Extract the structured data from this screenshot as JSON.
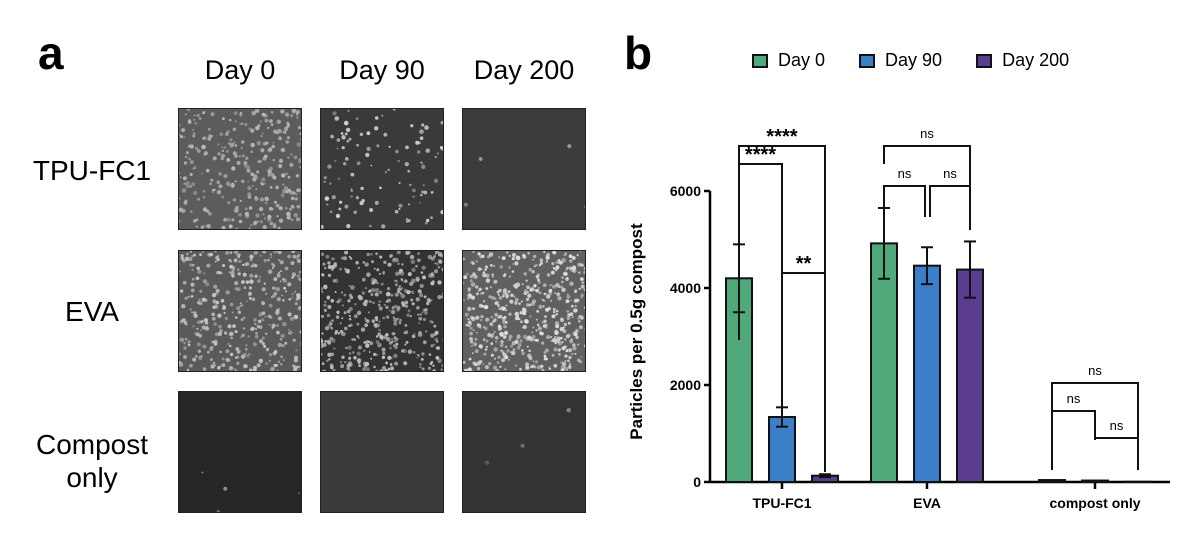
{
  "panel_a": {
    "letter": "a",
    "columns": [
      "Day 0",
      "Day 90",
      "Day 200"
    ],
    "rows": [
      {
        "label": "TPU-FC1",
        "tiles": [
          {
            "bg": "#5c5c5c",
            "density": 320,
            "dot": "#b8b8b8"
          },
          {
            "bg": "#3a3a3a",
            "density": 110,
            "dot": "#d0d0d0"
          },
          {
            "bg": "#3c3c3c",
            "density": 4,
            "dot": "#9a9a9a"
          }
        ]
      },
      {
        "label": "EVA",
        "tiles": [
          {
            "bg": "#5a5a5a",
            "density": 380,
            "dot": "#c8c8c8"
          },
          {
            "bg": "#333333",
            "density": 420,
            "dot": "#c0c0c0"
          },
          {
            "bg": "#606060",
            "density": 520,
            "dot": "#e0e0e0"
          }
        ]
      },
      {
        "label": "Compost only",
        "label_lines": [
          "Compost",
          "only"
        ],
        "tiles": [
          {
            "bg": "#262626",
            "density": 4,
            "dot": "#a0a0a0"
          },
          {
            "bg": "#3a3a3a",
            "density": 0,
            "dot": "#888888"
          },
          {
            "bg": "#333333",
            "density": 3,
            "dot": "#888888"
          }
        ]
      }
    ]
  },
  "panel_b": {
    "letter": "b"
  },
  "chart_data": {
    "type": "bar",
    "title": "",
    "xlabel": "",
    "ylabel": "Particles per 0.5g compost",
    "ylim": [
      0,
      6000
    ],
    "yticks": [
      0,
      2000,
      4000,
      6000
    ],
    "grid": false,
    "legend_position": "top",
    "categories": [
      "TPU-FC1",
      "EVA",
      "compost only"
    ],
    "series": [
      {
        "name": "Day 0",
        "color": "#4fa97a",
        "values": [
          4200,
          4920,
          40
        ],
        "errors": [
          700,
          730,
          20
        ]
      },
      {
        "name": "Day 90",
        "color": "#3a7fc8",
        "values": [
          1340,
          4460,
          30
        ],
        "errors": [
          200,
          380,
          20
        ]
      },
      {
        "name": "Day 200",
        "color": "#5b3d8f",
        "values": [
          130,
          4380,
          5
        ],
        "errors": [
          30,
          580,
          5
        ]
      }
    ],
    "significance": [
      {
        "category": "TPU-FC1",
        "from": "Day 0",
        "to": "Day 90",
        "label": "****"
      },
      {
        "category": "TPU-FC1",
        "from": "Day 0",
        "to": "Day 200",
        "label": "****"
      },
      {
        "category": "TPU-FC1",
        "from": "Day 90",
        "to": "Day 200",
        "label": "**"
      },
      {
        "category": "EVA",
        "from": "Day 0",
        "to": "Day 90",
        "label": "ns"
      },
      {
        "category": "EVA",
        "from": "Day 90",
        "to": "Day 200",
        "label": "ns"
      },
      {
        "category": "EVA",
        "from": "Day 0",
        "to": "Day 200",
        "label": "ns"
      },
      {
        "category": "compost only",
        "from": "Day 0",
        "to": "Day 90",
        "label": "ns"
      },
      {
        "category": "compost only",
        "from": "Day 90",
        "to": "Day 200",
        "label": "ns"
      },
      {
        "category": "compost only",
        "from": "Day 0",
        "to": "Day 200",
        "label": "ns"
      }
    ]
  }
}
